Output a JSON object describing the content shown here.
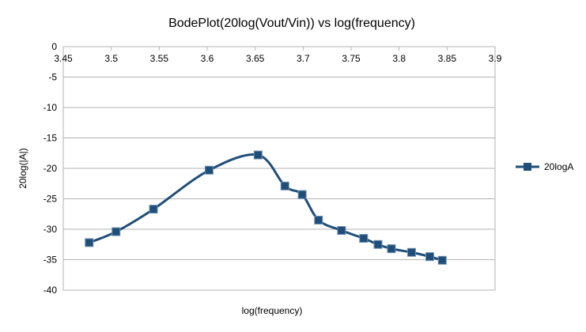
{
  "chart_data": {
    "type": "line",
    "title": "BodePlot(20log(Vout/Vin)) vs log(frequency)",
    "xlabel": "log(frequency)",
    "ylabel": "20log(|A|)",
    "xlim": [
      3.45,
      3.9
    ],
    "ylim": [
      -40,
      0
    ],
    "x_ticks": [
      3.45,
      3.5,
      3.55,
      3.6,
      3.65,
      3.7,
      3.75,
      3.8,
      3.85,
      3.9
    ],
    "x_tick_labels": [
      "3.45",
      "3.5",
      "3.55",
      "3.6",
      "3.65",
      "3.7",
      "3.75",
      "3.8",
      "3.85",
      "3.9"
    ],
    "y_ticks": [
      0,
      -5,
      -10,
      -15,
      -20,
      -25,
      -30,
      -35,
      -40
    ],
    "y_tick_labels": [
      "0",
      "-5",
      "-10",
      "-15",
      "-20",
      "-25",
      "-30",
      "-35",
      "-40"
    ],
    "grid": true,
    "legend": "right",
    "series": [
      {
        "name": "20logA",
        "color": "#1f4e79",
        "marker": "square",
        "smooth": true,
        "x": [
          3.477,
          3.505,
          3.544,
          3.602,
          3.653,
          3.681,
          3.699,
          3.716,
          3.74,
          3.763,
          3.778,
          3.792,
          3.813,
          3.832,
          3.845
        ],
        "y": [
          -32.2,
          -30.4,
          -26.7,
          -20.3,
          -17.8,
          -22.9,
          -24.3,
          -28.5,
          -30.2,
          -31.5,
          -32.5,
          -33.2,
          -33.8,
          -34.5,
          -35.1
        ]
      }
    ]
  }
}
